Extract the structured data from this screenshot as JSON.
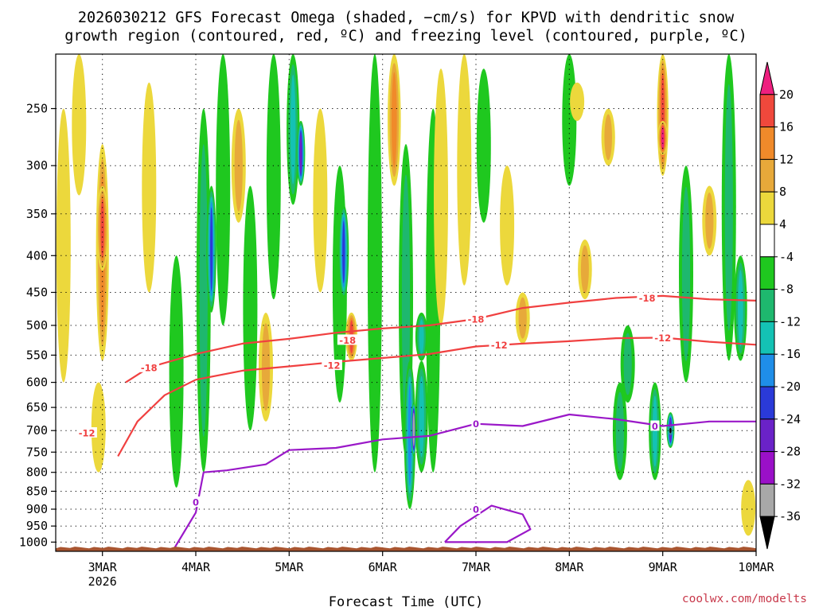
{
  "title_line1": "2026030212 GFS Forecast Omega (shaded, −cm/s) for KPVD with dendritic snow",
  "title_line2": "growth region (contoured, red, ºC) and freezing level (contoured, purple, ºC)",
  "credit": "coolwx.com/modelts",
  "chart_data": {
    "type": "heatmap",
    "xlabel": "Forecast Time (UTC)",
    "ylabel": "",
    "y_axis": {
      "scale": "log",
      "reversed": true,
      "ylim": [
        210,
        1030
      ],
      "ticks": [
        250,
        300,
        350,
        400,
        450,
        500,
        550,
        600,
        650,
        700,
        750,
        800,
        850,
        900,
        950,
        1000
      ]
    },
    "x_axis": {
      "xlim": [
        "2026-03-02T12",
        "2026-03-10T00"
      ],
      "ticks": [
        {
          "label": "3MAR",
          "sublabel": "2026",
          "t": "2026-03-03T00"
        },
        {
          "label": "4MAR",
          "sublabel": "",
          "t": "2026-03-04T00"
        },
        {
          "label": "5MAR",
          "sublabel": "",
          "t": "2026-03-05T00"
        },
        {
          "label": "6MAR",
          "sublabel": "",
          "t": "2026-03-06T00"
        },
        {
          "label": "7MAR",
          "sublabel": "",
          "t": "2026-03-07T00"
        },
        {
          "label": "8MAR",
          "sublabel": "",
          "t": "2026-03-08T00"
        },
        {
          "label": "9MAR",
          "sublabel": "",
          "t": "2026-03-09T00"
        },
        {
          "label": "10MAR",
          "sublabel": "",
          "t": "2026-03-10T00"
        }
      ]
    },
    "grid": true,
    "colorbar": {
      "labels": [
        "20",
        "16",
        "12",
        "8",
        "4",
        "-4",
        "-8",
        "-12",
        "-16",
        "-20",
        "-24",
        "-28",
        "-32",
        "-36"
      ],
      "bins": [
        {
          "min": 20,
          "max": null,
          "color": "#ee1f7f"
        },
        {
          "min": 16,
          "max": 20,
          "color": "#f0483c"
        },
        {
          "min": 12,
          "max": 16,
          "color": "#f08a2a"
        },
        {
          "min": 8,
          "max": 12,
          "color": "#e7a93a"
        },
        {
          "min": 4,
          "max": 8,
          "color": "#ecd83c"
        },
        {
          "min": -4,
          "max": 4,
          "color": "#ffffff"
        },
        {
          "min": -8,
          "max": -4,
          "color": "#1fc81f"
        },
        {
          "min": -12,
          "max": -8,
          "color": "#1eb86e"
        },
        {
          "min": -16,
          "max": -12,
          "color": "#14c2b4"
        },
        {
          "min": -20,
          "max": -16,
          "color": "#1f8ee8"
        },
        {
          "min": -24,
          "max": -20,
          "color": "#2a3ad8"
        },
        {
          "min": -28,
          "max": -24,
          "color": "#6a22c8"
        },
        {
          "min": -32,
          "max": -28,
          "color": "#9a10c8"
        },
        {
          "min": -36,
          "max": -32,
          "color": "#a8a8a8"
        },
        {
          "min": null,
          "max": -36,
          "color": "#000000"
        }
      ]
    },
    "omega_features": [
      {
        "t": "2026-03-02T14",
        "p_top": 250,
        "p_bot": 600,
        "value": 8
      },
      {
        "t": "2026-03-02T18",
        "p_top": 210,
        "p_bot": 330,
        "value": 5
      },
      {
        "t": "2026-03-03T00",
        "p_top": 280,
        "p_bot": 560,
        "value": 14
      },
      {
        "t": "2026-03-03T00",
        "p_top": 320,
        "p_bot": 420,
        "value": 17
      },
      {
        "t": "2026-03-02T23",
        "p_top": 600,
        "p_bot": 800,
        "value": 6
      },
      {
        "t": "2026-03-03T12",
        "p_top": 230,
        "p_bot": 450,
        "value": 5
      },
      {
        "t": "2026-03-03T19",
        "p_top": 400,
        "p_bot": 840,
        "value": -7
      },
      {
        "t": "2026-03-04T02",
        "p_top": 250,
        "p_bot": 800,
        "value": -9
      },
      {
        "t": "2026-03-04T04",
        "p_top": 320,
        "p_bot": 480,
        "value": -22
      },
      {
        "t": "2026-03-04T07",
        "p_top": 210,
        "p_bot": 500,
        "value": -6
      },
      {
        "t": "2026-03-04T11",
        "p_top": 250,
        "p_bot": 360,
        "value": 9
      },
      {
        "t": "2026-03-04T14",
        "p_top": 320,
        "p_bot": 700,
        "value": -7
      },
      {
        "t": "2026-03-04T18",
        "p_top": 480,
        "p_bot": 680,
        "value": 10
      },
      {
        "t": "2026-03-04T20",
        "p_top": 210,
        "p_bot": 460,
        "value": -8
      },
      {
        "t": "2026-03-05T01",
        "p_top": 210,
        "p_bot": 340,
        "value": -14
      },
      {
        "t": "2026-03-05T03",
        "p_top": 260,
        "p_bot": 320,
        "value": -26
      },
      {
        "t": "2026-03-05T08",
        "p_top": 250,
        "p_bot": 450,
        "value": 6
      },
      {
        "t": "2026-03-05T13",
        "p_top": 300,
        "p_bot": 640,
        "value": -8
      },
      {
        "t": "2026-03-05T14",
        "p_top": 340,
        "p_bot": 460,
        "value": -21
      },
      {
        "t": "2026-03-05T16",
        "p_top": 480,
        "p_bot": 560,
        "value": 17
      },
      {
        "t": "2026-03-05T22",
        "p_top": 210,
        "p_bot": 800,
        "value": -7
      },
      {
        "t": "2026-03-06T03",
        "p_top": 210,
        "p_bot": 320,
        "value": 13
      },
      {
        "t": "2026-03-06T06",
        "p_top": 280,
        "p_bot": 760,
        "value": -9
      },
      {
        "t": "2026-03-06T07",
        "p_top": 560,
        "p_bot": 900,
        "value": -18
      },
      {
        "t": "2026-03-06T08",
        "p_top": 640,
        "p_bot": 760,
        "value": -34
      },
      {
        "t": "2026-03-06T10",
        "p_top": 560,
        "p_bot": 800,
        "value": -14
      },
      {
        "t": "2026-03-06T10",
        "p_top": 480,
        "p_bot": 560,
        "value": -16
      },
      {
        "t": "2026-03-06T13",
        "p_top": 250,
        "p_bot": 800,
        "value": -8
      },
      {
        "t": "2026-03-06T15",
        "p_top": 220,
        "p_bot": 500,
        "value": 6
      },
      {
        "t": "2026-03-06T21",
        "p_top": 210,
        "p_bot": 440,
        "value": 7
      },
      {
        "t": "2026-03-07T02",
        "p_top": 220,
        "p_bot": 360,
        "value": -7
      },
      {
        "t": "2026-03-07T08",
        "p_top": 300,
        "p_bot": 440,
        "value": 6
      },
      {
        "t": "2026-03-07T12",
        "p_top": 450,
        "p_bot": 530,
        "value": 9
      },
      {
        "t": "2026-03-08T00",
        "p_top": 210,
        "p_bot": 320,
        "value": -8
      },
      {
        "t": "2026-03-08T02",
        "p_top": 230,
        "p_bot": 260,
        "value": 6
      },
      {
        "t": "2026-03-08T04",
        "p_top": 380,
        "p_bot": 460,
        "value": 11
      },
      {
        "t": "2026-03-08T10",
        "p_top": 250,
        "p_bot": 300,
        "value": 12
      },
      {
        "t": "2026-03-08T13",
        "p_top": 600,
        "p_bot": 820,
        "value": -10
      },
      {
        "t": "2026-03-08T15",
        "p_top": 500,
        "p_bot": 640,
        "value": -9
      },
      {
        "t": "2026-03-08T22",
        "p_top": 600,
        "p_bot": 820,
        "value": -16
      },
      {
        "t": "2026-03-09T00",
        "p_top": 210,
        "p_bot": 310,
        "value": 18
      },
      {
        "t": "2026-03-09T00",
        "p_top": 260,
        "p_bot": 290,
        "value": 22
      },
      {
        "t": "2026-03-09T02",
        "p_top": 660,
        "p_bot": 740,
        "value": -28
      },
      {
        "t": "2026-03-09T02",
        "p_top": 690,
        "p_bot": 710,
        "value": -40
      },
      {
        "t": "2026-03-09T06",
        "p_top": 300,
        "p_bot": 600,
        "value": -9
      },
      {
        "t": "2026-03-09T12",
        "p_top": 320,
        "p_bot": 400,
        "value": 10
      },
      {
        "t": "2026-03-09T17",
        "p_top": 210,
        "p_bot": 560,
        "value": -9
      },
      {
        "t": "2026-03-09T20",
        "p_top": 400,
        "p_bot": 560,
        "value": -13
      },
      {
        "t": "2026-03-09T22",
        "p_top": 820,
        "p_bot": 980,
        "value": 6
      }
    ],
    "contours": [
      {
        "name": "",
        "color": "#f04040",
        "label": "-18",
        "points": [
          [
            "2026-03-03T06",
            600
          ],
          [
            "2026-03-03T12",
            572
          ],
          [
            "2026-03-04T00",
            548
          ],
          [
            "2026-03-04T12",
            530
          ],
          [
            "2026-03-05T00",
            522
          ],
          [
            "2026-03-05T12",
            512
          ],
          [
            "2026-03-06T00",
            505
          ],
          [
            "2026-03-06T12",
            500
          ],
          [
            "2026-03-07T00",
            490
          ],
          [
            "2026-03-07T12",
            473
          ],
          [
            "2026-03-08T00",
            465
          ],
          [
            "2026-03-08T12",
            458
          ],
          [
            "2026-03-09T00",
            455
          ],
          [
            "2026-03-09T12",
            460
          ],
          [
            "2026-03-10T00",
            462
          ]
        ],
        "labels_at": [
          [
            "2026-03-03T12",
            572
          ],
          [
            "2026-03-05T15",
            524
          ],
          [
            "2026-03-07T00",
            490
          ],
          [
            "2026-03-08T20",
            458
          ]
        ]
      },
      {
        "name": "",
        "color": "#f04040",
        "label": "-12",
        "points": [
          [
            "2026-03-03T04",
            760
          ],
          [
            "2026-03-03T09",
            680
          ],
          [
            "2026-03-03T16",
            625
          ],
          [
            "2026-03-04T00",
            595
          ],
          [
            "2026-03-04T12",
            578
          ],
          [
            "2026-03-05T00",
            570
          ],
          [
            "2026-03-05T12",
            562
          ],
          [
            "2026-03-06T00",
            555
          ],
          [
            "2026-03-06T12",
            548
          ],
          [
            "2026-03-07T00",
            535
          ],
          [
            "2026-03-07T12",
            530
          ],
          [
            "2026-03-08T00",
            526
          ],
          [
            "2026-03-08T12",
            521
          ],
          [
            "2026-03-09T00",
            520
          ],
          [
            "2026-03-09T12",
            527
          ],
          [
            "2026-03-10T00",
            532
          ]
        ],
        "labels_at": [
          [
            "2026-03-02T20",
            705
          ],
          [
            "2026-03-05T11",
            568
          ],
          [
            "2026-03-07T06",
            532
          ],
          [
            "2026-03-09T00",
            520
          ]
        ]
      },
      {
        "name": "",
        "color": "#9a18c8",
        "label": "0",
        "points": [
          [
            "2026-03-03T18",
            1030
          ],
          [
            "2026-03-04T00",
            910
          ],
          [
            "2026-03-04T02",
            800
          ],
          [
            "2026-03-04T08",
            795
          ],
          [
            "2026-03-04T18",
            780
          ],
          [
            "2026-03-05T00",
            745
          ],
          [
            "2026-03-05T12",
            740
          ],
          [
            "2026-03-06T00",
            720
          ],
          [
            "2026-03-06T12",
            712
          ],
          [
            "2026-03-07T00",
            685
          ],
          [
            "2026-03-07T12",
            690
          ],
          [
            "2026-03-08T00",
            665
          ],
          [
            "2026-03-08T12",
            675
          ],
          [
            "2026-03-09T00",
            690
          ],
          [
            "2026-03-09T12",
            680
          ],
          [
            "2026-03-10T00",
            680
          ]
        ],
        "labels_at": [
          [
            "2026-03-04T00",
            880
          ],
          [
            "2026-03-07T00",
            685
          ],
          [
            "2026-03-08T22",
            690
          ]
        ]
      },
      {
        "name": "",
        "color": "#9a18c8",
        "label": "0",
        "points": [
          [
            "2026-03-06T16",
            1000
          ],
          [
            "2026-03-06T20",
            950
          ],
          [
            "2026-03-07T04",
            890
          ],
          [
            "2026-03-07T12",
            915
          ],
          [
            "2026-03-07T14",
            960
          ],
          [
            "2026-03-07T08",
            1000
          ],
          [
            "2026-03-06T16",
            1000
          ]
        ],
        "labels_at": [
          [
            "2026-03-07T00",
            900
          ]
        ]
      }
    ],
    "terrain": {
      "color": "#a85530",
      "p_surface": 1020
    }
  }
}
